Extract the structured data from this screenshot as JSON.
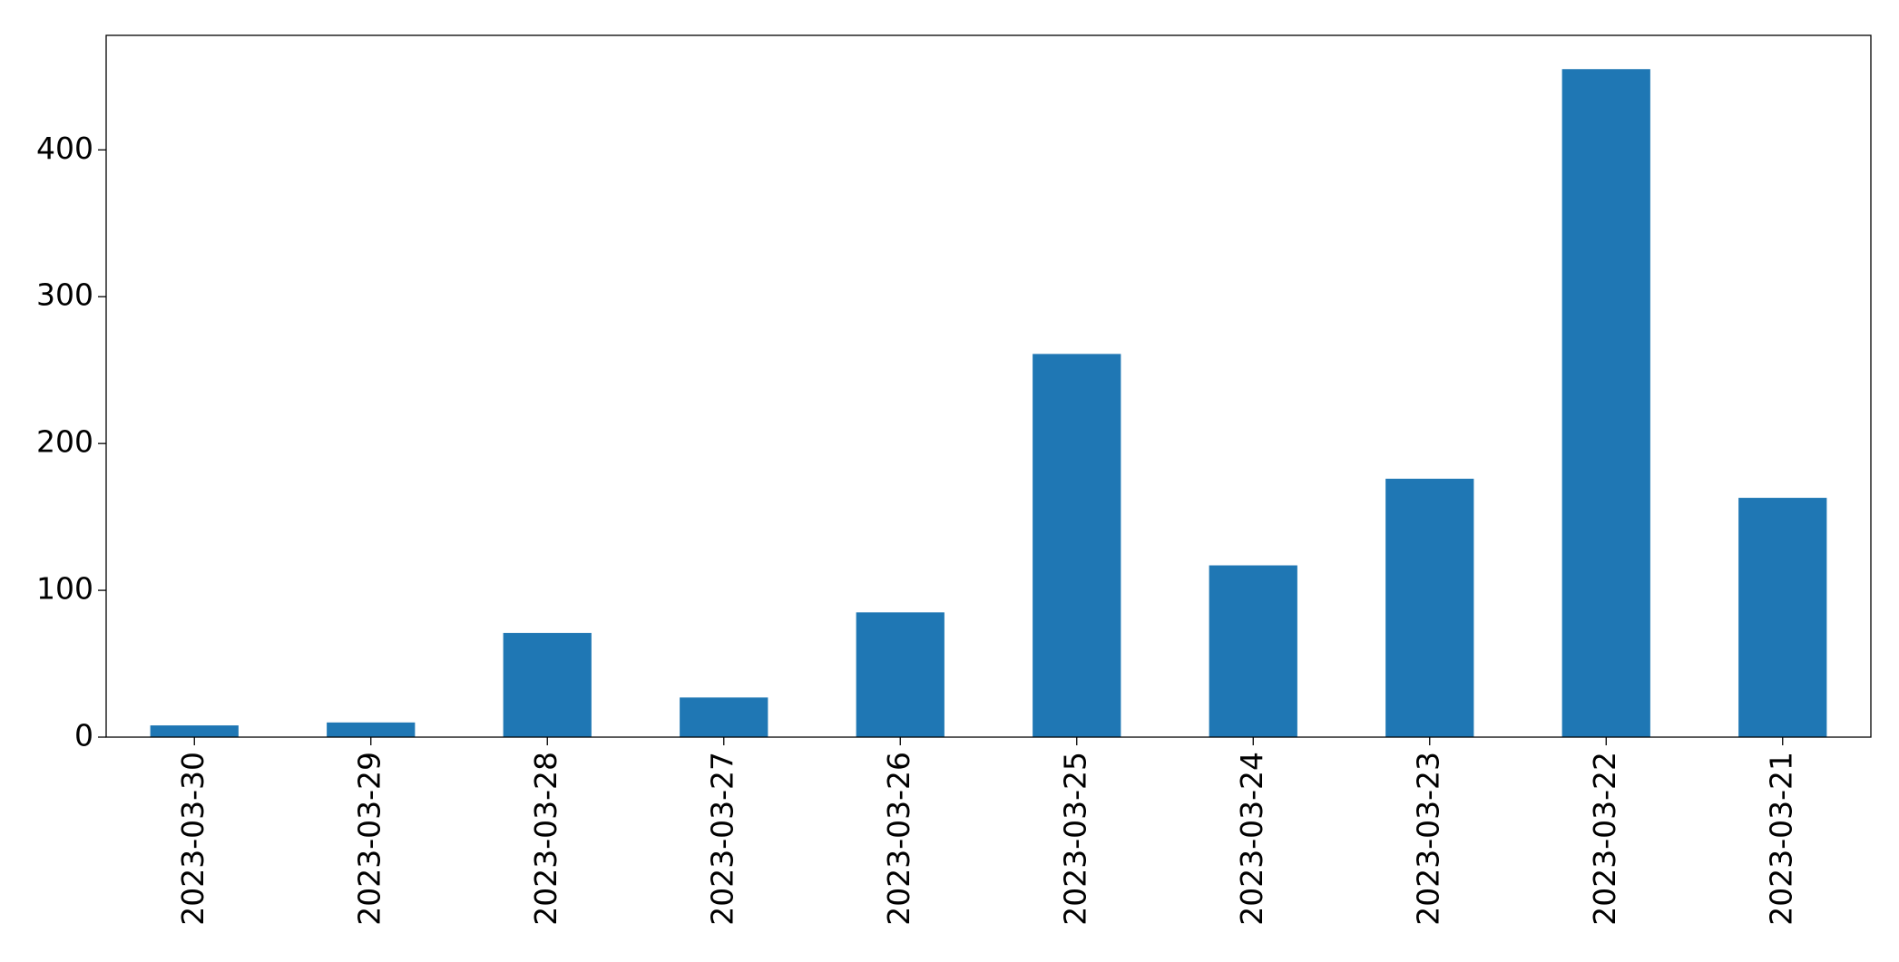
{
  "chart_data": {
    "type": "bar",
    "categories": [
      "2023-03-30",
      "2023-03-29",
      "2023-03-28",
      "2023-03-27",
      "2023-03-26",
      "2023-03-25",
      "2023-03-24",
      "2023-03-23",
      "2023-03-22",
      "2023-03-21"
    ],
    "values": [
      8,
      10,
      71,
      27,
      85,
      261,
      117,
      176,
      455,
      163
    ],
    "color": "#1f77b4",
    "ylim": [
      0,
      478
    ],
    "yticks": [
      0,
      100,
      200,
      300,
      400
    ],
    "grid": false
  }
}
